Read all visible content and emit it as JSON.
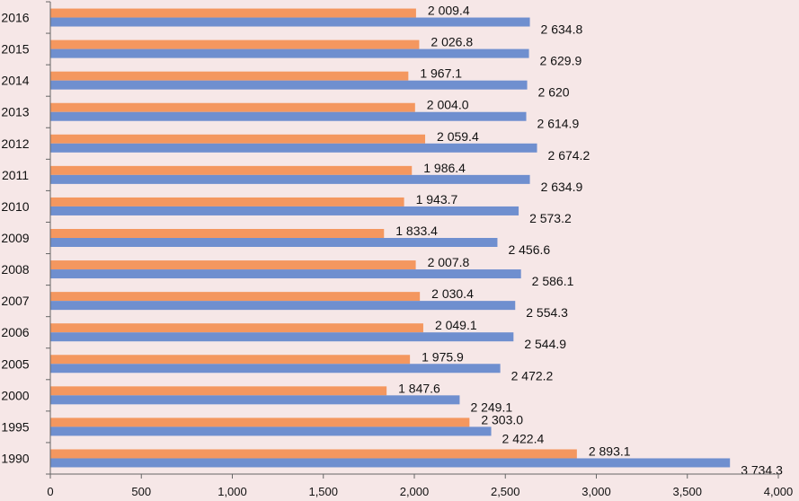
{
  "chart_data": {
    "type": "bar",
    "orientation": "horizontal",
    "categories": [
      "1990",
      "1995",
      "2000",
      "2005",
      "2006",
      "2007",
      "2008",
      "2009",
      "2010",
      "2011",
      "2012",
      "2013",
      "2014",
      "2015",
      "2016"
    ],
    "series": [
      {
        "color": "#f4975f",
        "values": [
          2893.1,
          2303.0,
          1847.6,
          1975.9,
          2049.1,
          2030.4,
          2007.8,
          1833.4,
          1943.7,
          1986.4,
          2059.4,
          2004.0,
          1967.1,
          2026.8,
          2009.4
        ],
        "labels": [
          "2 893.1",
          "2 303.0",
          "1 847.6",
          "1 975.9",
          "2 049.1",
          "2 030.4",
          "2 007.8",
          "1 833.4",
          "1 943.7",
          "1 986.4",
          "2 059.4",
          "2 004.0",
          "1 967.1",
          "2 026.8",
          "2 009.4"
        ]
      },
      {
        "color": "#6f8fcf",
        "values": [
          3734.3,
          2422.4,
          2249.1,
          2472.2,
          2544.9,
          2554.3,
          2586.1,
          2456.6,
          2573.2,
          2634.9,
          2674.2,
          2614.9,
          2620,
          2629.9,
          2634.8
        ],
        "labels": [
          "3 734.3",
          "2 422.4",
          "2 249.1",
          "2 472.2",
          "2 544.9",
          "2 554.3",
          "2 586.1",
          "2 456.6",
          "2 573.2",
          "2 634.9",
          "2 674.2",
          "2 614.9",
          "2 620",
          "2 629.9",
          "2 634.8"
        ]
      }
    ],
    "xlim": [
      0,
      4000
    ],
    "xticks": [
      0,
      500,
      1000,
      1500,
      2000,
      2500,
      3000,
      3500,
      4000
    ],
    "xtick_labels": [
      "0",
      "500",
      "1,000",
      "1,500",
      "2,000",
      "2,500",
      "3,000",
      "3,500",
      "4,000"
    ],
    "title": "",
    "xlabel": "",
    "ylabel": "",
    "grid": false,
    "legend": "none"
  }
}
